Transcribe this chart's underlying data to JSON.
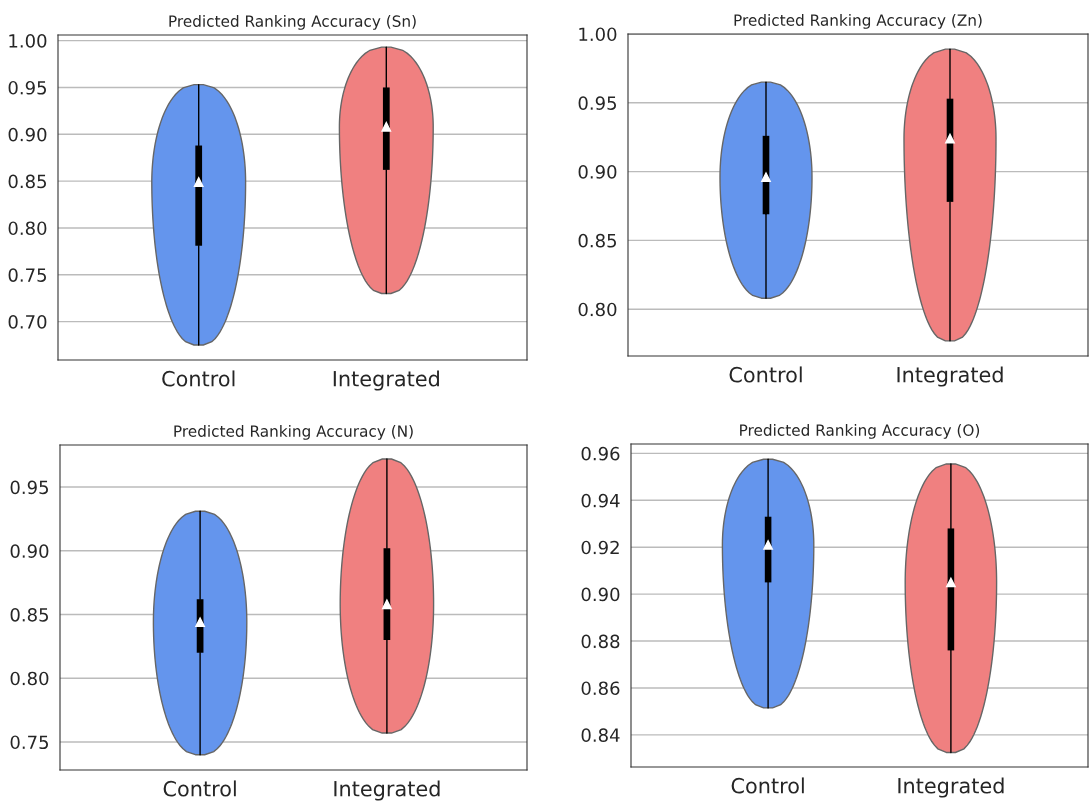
{
  "chart_data": [
    {
      "type": "box",
      "title": "Predicted Ranking Accuracy (Sn)",
      "categories": [
        "Control",
        "Integrated"
      ],
      "colors": [
        "#6495ed",
        "#f08080"
      ],
      "grid": "y",
      "ylim": [
        0.659,
        1.006
      ],
      "yticks": [
        {
          "value": 0.7,
          "label": "0.70"
        },
        {
          "value": 0.75,
          "label": "0.75"
        },
        {
          "value": 0.8,
          "label": "0.80"
        },
        {
          "value": 0.85,
          "label": "0.85"
        },
        {
          "value": 0.9,
          "label": "0.90"
        },
        {
          "value": 0.95,
          "label": "0.95"
        },
        {
          "value": 1.0,
          "label": "1.00"
        }
      ],
      "series": [
        {
          "color": "#000000",
          "boxes": [
            {
              "low": 0.675,
              "q1": 0.781,
              "median": 0.849,
              "q3": 0.888,
              "high": 0.953
            },
            {
              "low": 0.73,
              "q1": 0.862,
              "median": 0.908,
              "q3": 0.95,
              "high": 0.993
            }
          ]
        }
      ]
    },
    {
      "type": "box",
      "title": "Predicted Ranking Accuracy (Zn)",
      "categories": [
        "Control",
        "Integrated"
      ],
      "colors": [
        "#6495ed",
        "#f08080"
      ],
      "grid": "y",
      "ylim": [
        0.766,
        1.0
      ],
      "yticks": [
        {
          "value": 0.8,
          "label": "0.80"
        },
        {
          "value": 0.85,
          "label": "0.85"
        },
        {
          "value": 0.9,
          "label": "0.90"
        },
        {
          "value": 0.95,
          "label": "0.95"
        },
        {
          "value": 1.0,
          "label": "1.00"
        }
      ],
      "series": [
        {
          "color": "#000000",
          "boxes": [
            {
              "low": 0.808,
              "q1": 0.869,
              "median": 0.896,
              "q3": 0.926,
              "high": 0.965
            },
            {
              "low": 0.777,
              "q1": 0.878,
              "median": 0.924,
              "q3": 0.953,
              "high": 0.989
            }
          ]
        }
      ]
    },
    {
      "type": "box",
      "title": "Predicted Ranking Accuracy (N)",
      "categories": [
        "Control",
        "Integrated"
      ],
      "colors": [
        "#6495ed",
        "#f08080"
      ],
      "grid": "y",
      "ylim": [
        0.728,
        0.983
      ],
      "yticks": [
        {
          "value": 0.75,
          "label": "0.75"
        },
        {
          "value": 0.8,
          "label": "0.80"
        },
        {
          "value": 0.85,
          "label": "0.85"
        },
        {
          "value": 0.9,
          "label": "0.90"
        },
        {
          "value": 0.95,
          "label": "0.95"
        }
      ],
      "series": [
        {
          "color": "#000000",
          "boxes": [
            {
              "low": 0.74,
              "q1": 0.82,
              "median": 0.844,
              "q3": 0.862,
              "high": 0.931
            },
            {
              "low": 0.757,
              "q1": 0.83,
              "median": 0.858,
              "q3": 0.902,
              "high": 0.972
            }
          ]
        }
      ]
    },
    {
      "type": "box",
      "title": "Predicted Ranking Accuracy (O)",
      "categories": [
        "Control",
        "Integrated"
      ],
      "colors": [
        "#6495ed",
        "#f08080"
      ],
      "grid": "y",
      "ylim": [
        0.8263,
        0.964
      ],
      "yticks": [
        {
          "value": 0.84,
          "label": "0.84"
        },
        {
          "value": 0.86,
          "label": "0.86"
        },
        {
          "value": 0.88,
          "label": "0.88"
        },
        {
          "value": 0.9,
          "label": "0.90"
        },
        {
          "value": 0.92,
          "label": "0.92"
        },
        {
          "value": 0.94,
          "label": "0.94"
        },
        {
          "value": 0.96,
          "label": "0.96"
        }
      ],
      "series": [
        {
          "color": "#000000",
          "boxes": [
            {
              "low": 0.8515,
              "q1": 0.905,
              "median": 0.921,
              "q3": 0.933,
              "high": 0.9575
            },
            {
              "low": 0.8325,
              "q1": 0.876,
              "median": 0.905,
              "q3": 0.928,
              "high": 0.9555
            }
          ]
        }
      ]
    }
  ]
}
